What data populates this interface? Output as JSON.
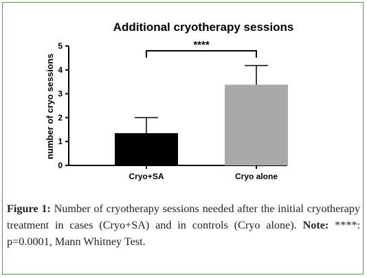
{
  "chart_data": {
    "type": "bar",
    "title": "Additional cryotherapy sessions",
    "ylabel": "number of cryo sessions",
    "xlabel": "",
    "categories": [
      "Cryo+SA",
      "Cryo alone"
    ],
    "values": [
      1.35,
      3.38
    ],
    "errors": [
      0.65,
      0.8
    ],
    "colors": [
      "#000000",
      "#a9a9ac"
    ],
    "ylim": [
      0,
      5
    ],
    "yticks": [
      "0",
      "1",
      "2",
      "3",
      "4",
      "5"
    ],
    "significance": "****"
  },
  "caption": {
    "figure_label": "Figure 1:",
    "text": " Number of cryotherapy sessions needed after the initial cryotherapy treatment in cases (Cryo+SA) and in controls (Cryo alone). ",
    "note_label": "Note:",
    "note_text": " ****: p=0.0001, Mann Whitney Test."
  }
}
